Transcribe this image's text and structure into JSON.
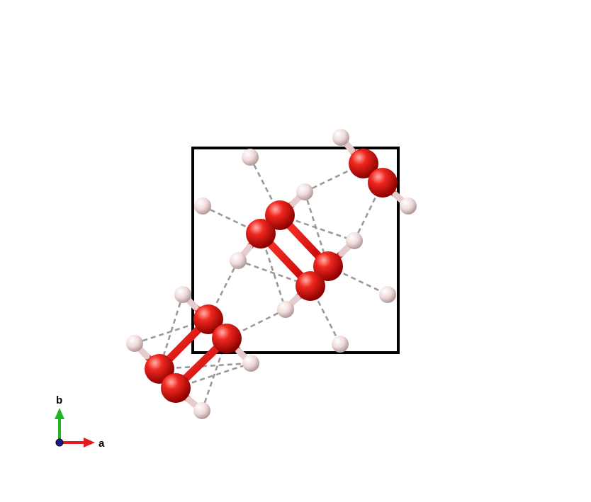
{
  "axes": {
    "a_label": "a",
    "b_label": "b",
    "colors": {
      "a": "#e41a1c",
      "b": "#22b422",
      "c": "#1a1a8c"
    }
  },
  "colors": {
    "oxygen": "#e41a1c",
    "hydrogen": "#f3dede",
    "cell": "#000000",
    "hbond": "#999999"
  }
}
